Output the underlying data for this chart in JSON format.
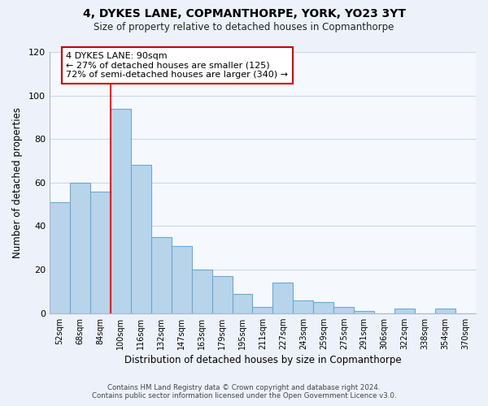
{
  "title": "4, DYKES LANE, COPMANTHORPE, YORK, YO23 3YT",
  "subtitle": "Size of property relative to detached houses in Copmanthorpe",
  "xlabel": "Distribution of detached houses by size in Copmanthorpe",
  "ylabel": "Number of detached properties",
  "categories": [
    "52sqm",
    "68sqm",
    "84sqm",
    "100sqm",
    "116sqm",
    "132sqm",
    "147sqm",
    "163sqm",
    "179sqm",
    "195sqm",
    "211sqm",
    "227sqm",
    "243sqm",
    "259sqm",
    "275sqm",
    "291sqm",
    "306sqm",
    "322sqm",
    "338sqm",
    "354sqm",
    "370sqm"
  ],
  "values": [
    51,
    60,
    56,
    94,
    68,
    35,
    31,
    20,
    17,
    9,
    3,
    14,
    6,
    5,
    3,
    1,
    0,
    2,
    0,
    2,
    0
  ],
  "bar_color": "#b8d4eb",
  "bar_edge_color": "#6aaad4",
  "ylim": [
    0,
    120
  ],
  "yticks": [
    0,
    20,
    40,
    60,
    80,
    100,
    120
  ],
  "redline_index": 2.5,
  "annotation_title": "4 DYKES LANE: 90sqm",
  "annotation_line1": "← 27% of detached houses are smaller (125)",
  "annotation_line2": "72% of semi-detached houses are larger (340) →",
  "annotation_box_facecolor": "#ffffff",
  "annotation_box_edgecolor": "#cc0000",
  "footer_line1": "Contains HM Land Registry data © Crown copyright and database right 2024.",
  "footer_line2": "Contains public sector information licensed under the Open Government Licence v3.0.",
  "background_color": "#edf2fa",
  "plot_background_color": "#f5f8fd",
  "grid_color": "#c8d8ea"
}
